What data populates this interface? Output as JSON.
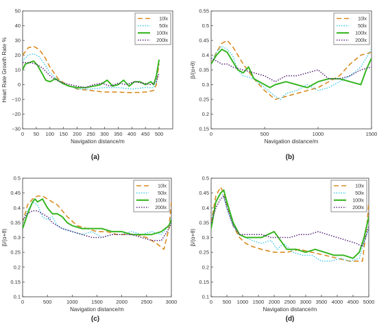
{
  "series_styles": [
    {
      "name": "10lx",
      "color": "#d98a1f",
      "dash": "7,4",
      "width": 1.6
    },
    {
      "name": "50lx",
      "color": "#39c6e8",
      "dash": "1.5,2",
      "width": 1.4
    },
    {
      "name": "100lx",
      "color": "#35b51f",
      "dash": "",
      "width": 2.0
    },
    {
      "name": "200lx",
      "color": "#5a2a7a",
      "dash": "1.5,2",
      "width": 1.6
    }
  ],
  "chart_data": [
    {
      "type": "line",
      "panel_label": "(a)",
      "xlabel": "Navigation distance/m",
      "ylabel": "Heart Rate Growth Rate %",
      "xlim": [
        0,
        550
      ],
      "ylim": [
        -30,
        50
      ],
      "xticks": [
        0,
        50,
        100,
        150,
        200,
        250,
        300,
        350,
        400,
        450,
        500
      ],
      "xticklabels": [
        "0",
        "50",
        "100",
        "150",
        "200",
        "250",
        "300",
        "350",
        "400",
        "450",
        "500"
      ],
      "yticks": [
        -30,
        -20,
        -10,
        0,
        10,
        20,
        30,
        40,
        50
      ],
      "yticklabels": [
        "−30",
        "−20",
        "−10",
        "0",
        "10",
        "20",
        "30",
        "40",
        "50"
      ],
      "legend": "top-right",
      "series": [
        {
          "name": "10lx",
          "x": [
            0,
            20,
            40,
            60,
            80,
            100,
            130,
            160,
            200,
            250,
            300,
            350,
            400,
            450,
            480,
            490,
            495,
            500
          ],
          "y": [
            20,
            25,
            26,
            24,
            19,
            12,
            4,
            0,
            -3,
            -4,
            -5,
            -5,
            -5.5,
            -5,
            -4,
            0,
            8,
            14
          ]
        },
        {
          "name": "50lx",
          "x": [
            0,
            20,
            40,
            60,
            80,
            100,
            130,
            160,
            200,
            250,
            300,
            350,
            400,
            450,
            480,
            490,
            495,
            500
          ],
          "y": [
            16,
            20,
            21,
            19,
            14,
            8,
            3,
            0,
            -3,
            -3,
            -2,
            -2,
            -3,
            -2,
            -2,
            2,
            10,
            16
          ]
        },
        {
          "name": "100lx",
          "x": [
            0,
            10,
            25,
            40,
            55,
            70,
            85,
            100,
            120,
            145,
            170,
            200,
            230,
            260,
            285,
            310,
            330,
            350,
            370,
            390,
            410,
            430,
            450,
            470,
            480,
            490,
            500
          ],
          "y": [
            10,
            14,
            15,
            16,
            13,
            8,
            3,
            2,
            4,
            1,
            -1,
            -2,
            -2,
            -1,
            0,
            3,
            -1,
            0,
            3,
            -1,
            2,
            2,
            0,
            2,
            0,
            6,
            17
          ]
        },
        {
          "name": "200lx",
          "x": [
            0,
            25,
            50,
            75,
            100,
            125,
            150,
            175,
            200,
            230,
            260,
            290,
            320,
            350,
            380,
            410,
            440,
            470,
            490,
            500
          ],
          "y": [
            15,
            15,
            14,
            11,
            6,
            3,
            1,
            0,
            -1,
            -2,
            0,
            1,
            -1,
            1,
            0,
            2,
            1,
            0,
            2,
            8
          ]
        }
      ]
    },
    {
      "type": "line",
      "panel_label": "(b)",
      "xlabel": "Navigation distance/m",
      "ylabel": "β/(α+θ)",
      "xlim": [
        0,
        1500
      ],
      "ylim": [
        0.15,
        0.55
      ],
      "xticks": [
        0,
        500,
        1000,
        1500
      ],
      "xticklabels": [
        "0",
        "500",
        "1000",
        "1500"
      ],
      "yticks": [
        0.15,
        0.2,
        0.25,
        0.3,
        0.35,
        0.4,
        0.45,
        0.5,
        0.55
      ],
      "yticklabels": [
        "0.15",
        "0.2",
        "0.25",
        "0.3",
        "0.35",
        "0.4",
        "0.45",
        "0.5",
        "0.55"
      ],
      "legend": "top-right",
      "series": [
        {
          "name": "10lx",
          "x": [
            0,
            50,
            100,
            150,
            200,
            300,
            400,
            500,
            600,
            700,
            800,
            900,
            1000,
            1100,
            1200,
            1300,
            1400,
            1500
          ],
          "y": [
            0.37,
            0.41,
            0.44,
            0.45,
            0.43,
            0.37,
            0.32,
            0.28,
            0.25,
            0.26,
            0.27,
            0.28,
            0.29,
            0.31,
            0.33,
            0.37,
            0.4,
            0.41
          ]
        },
        {
          "name": "50lx",
          "x": [
            0,
            50,
            100,
            150,
            200,
            250,
            300,
            400,
            500,
            600,
            650,
            700,
            800,
            900,
            1000,
            1100,
            1200,
            1300,
            1400,
            1500
          ],
          "y": [
            0.37,
            0.41,
            0.43,
            0.42,
            0.4,
            0.35,
            0.33,
            0.32,
            0.29,
            0.26,
            0.25,
            0.27,
            0.28,
            0.3,
            0.28,
            0.29,
            0.31,
            0.33,
            0.36,
            0.42
          ]
        },
        {
          "name": "100lx",
          "x": [
            0,
            50,
            100,
            150,
            200,
            250,
            300,
            350,
            400,
            450,
            500,
            550,
            600,
            700,
            800,
            900,
            1000,
            1100,
            1200,
            1300,
            1400,
            1450,
            1500
          ],
          "y": [
            0.37,
            0.4,
            0.42,
            0.41,
            0.38,
            0.35,
            0.34,
            0.36,
            0.32,
            0.31,
            0.3,
            0.29,
            0.3,
            0.31,
            0.3,
            0.29,
            0.31,
            0.32,
            0.32,
            0.31,
            0.3,
            0.35,
            0.39
          ]
        },
        {
          "name": "200lx",
          "x": [
            0,
            50,
            100,
            150,
            200,
            300,
            400,
            500,
            600,
            700,
            800,
            900,
            1000,
            1100,
            1200,
            1300,
            1400,
            1500
          ],
          "y": [
            0.39,
            0.38,
            0.37,
            0.37,
            0.36,
            0.35,
            0.34,
            0.33,
            0.31,
            0.33,
            0.33,
            0.34,
            0.35,
            0.32,
            0.32,
            0.33,
            0.35,
            0.36
          ]
        }
      ]
    },
    {
      "type": "line",
      "panel_label": "(c)",
      "xlabel": "Navigation distance/m",
      "ylabel": "β/(α+θ)",
      "xlim": [
        0,
        3000
      ],
      "ylim": [
        0.1,
        0.5
      ],
      "xticks": [
        0,
        500,
        1000,
        1500,
        2000,
        2500,
        3000
      ],
      "xticklabels": [
        "0",
        "500",
        "1000",
        "1500",
        "2000",
        "2500",
        "3000"
      ],
      "yticks": [
        0.1,
        0.15,
        0.2,
        0.25,
        0.3,
        0.35,
        0.4,
        0.45,
        0.5
      ],
      "yticklabels": [
        "0.1",
        "0.15",
        "0.2",
        "0.25",
        "0.3",
        "0.35",
        "0.4",
        "0.45",
        "0.5"
      ],
      "legend": "top-right",
      "series": [
        {
          "name": "10lx",
          "x": [
            0,
            100,
            200,
            300,
            400,
            500,
            700,
            900,
            1100,
            1300,
            1500,
            1700,
            1900,
            2100,
            2300,
            2500,
            2700,
            2850,
            2950,
            3000
          ],
          "y": [
            0.35,
            0.41,
            0.43,
            0.44,
            0.44,
            0.43,
            0.41,
            0.37,
            0.34,
            0.33,
            0.32,
            0.32,
            0.31,
            0.31,
            0.31,
            0.3,
            0.28,
            0.26,
            0.33,
            0.42
          ]
        },
        {
          "name": "50lx",
          "x": [
            0,
            100,
            200,
            300,
            400,
            500,
            600,
            700,
            800,
            1000,
            1200,
            1400,
            1600,
            1800,
            2000,
            2200,
            2400,
            2600,
            2800,
            2950,
            3000
          ],
          "y": [
            0.35,
            0.39,
            0.42,
            0.41,
            0.37,
            0.36,
            0.37,
            0.34,
            0.33,
            0.32,
            0.31,
            0.32,
            0.3,
            0.31,
            0.31,
            0.32,
            0.31,
            0.32,
            0.31,
            0.34,
            0.37
          ]
        },
        {
          "name": "100lx",
          "x": [
            0,
            100,
            200,
            250,
            300,
            400,
            500,
            600,
            700,
            800,
            900,
            1000,
            1200,
            1400,
            1600,
            1800,
            2000,
            2200,
            2400,
            2600,
            2800,
            2950,
            3000
          ],
          "y": [
            0.33,
            0.38,
            0.42,
            0.43,
            0.42,
            0.43,
            0.4,
            0.38,
            0.38,
            0.37,
            0.35,
            0.34,
            0.33,
            0.33,
            0.33,
            0.32,
            0.32,
            0.31,
            0.31,
            0.31,
            0.32,
            0.34,
            0.36
          ]
        },
        {
          "name": "200lx",
          "x": [
            0,
            100,
            200,
            300,
            400,
            500,
            600,
            800,
            1000,
            1200,
            1400,
            1600,
            1800,
            2000,
            2200,
            2400,
            2600,
            2800,
            2950,
            3000
          ],
          "y": [
            0.36,
            0.38,
            0.39,
            0.39,
            0.38,
            0.37,
            0.35,
            0.33,
            0.32,
            0.31,
            0.3,
            0.3,
            0.31,
            0.31,
            0.31,
            0.3,
            0.29,
            0.29,
            0.33,
            0.35
          ]
        }
      ]
    },
    {
      "type": "line",
      "panel_label": "(d)",
      "xlabel": "Navigation distance/m",
      "ylabel": "β/(α+θ)",
      "xlim": [
        0,
        5000
      ],
      "ylim": [
        0.1,
        0.5
      ],
      "xticks": [
        0,
        500,
        1000,
        1500,
        2000,
        2500,
        3000,
        3500,
        4000,
        4500,
        5000
      ],
      "xticklabels": [
        "0",
        "500",
        "1000",
        "1500",
        "2000",
        "2500",
        "3000",
        "3500",
        "4000",
        "4500",
        "5000"
      ],
      "yticks": [
        0.1,
        0.15,
        0.2,
        0.25,
        0.3,
        0.35,
        0.4,
        0.45,
        0.5
      ],
      "yticklabels": [
        "0.1",
        "0.15",
        "0.2",
        "0.25",
        "0.3",
        "0.35",
        "0.4",
        "0.45",
        "0.5"
      ],
      "legend": "top-right",
      "series": [
        {
          "name": "10lx",
          "x": [
            0,
            150,
            300,
            400,
            500,
            700,
            900,
            1100,
            1300,
            1600,
            2000,
            2400,
            2800,
            3200,
            3600,
            4000,
            4400,
            4800,
            4950,
            5000
          ],
          "y": [
            0.35,
            0.44,
            0.47,
            0.45,
            0.41,
            0.34,
            0.3,
            0.28,
            0.27,
            0.26,
            0.25,
            0.25,
            0.26,
            0.25,
            0.24,
            0.23,
            0.22,
            0.22,
            0.35,
            0.42
          ]
        },
        {
          "name": "50lx",
          "x": [
            0,
            150,
            300,
            400,
            500,
            700,
            900,
            1100,
            1300,
            1600,
            1900,
            2100,
            2300,
            2600,
            2900,
            3200,
            3500,
            3800,
            4100,
            4400,
            4700,
            4900,
            5000
          ],
          "y": [
            0.35,
            0.42,
            0.45,
            0.44,
            0.4,
            0.34,
            0.31,
            0.3,
            0.29,
            0.28,
            0.29,
            0.26,
            0.28,
            0.25,
            0.24,
            0.24,
            0.22,
            0.22,
            0.23,
            0.22,
            0.23,
            0.3,
            0.33
          ]
        },
        {
          "name": "100lx",
          "x": [
            0,
            150,
            300,
            400,
            500,
            700,
            900,
            1100,
            1300,
            1600,
            1800,
            2000,
            2200,
            2400,
            2700,
            3000,
            3300,
            3600,
            3900,
            4200,
            4500,
            4700,
            4850,
            5000
          ],
          "y": [
            0.33,
            0.42,
            0.45,
            0.46,
            0.42,
            0.35,
            0.31,
            0.3,
            0.3,
            0.3,
            0.31,
            0.32,
            0.29,
            0.26,
            0.26,
            0.25,
            0.26,
            0.25,
            0.24,
            0.24,
            0.23,
            0.25,
            0.3,
            0.37
          ]
        },
        {
          "name": "200lx",
          "x": [
            0,
            150,
            300,
            400,
            500,
            700,
            900,
            1100,
            1300,
            1600,
            1900,
            2200,
            2500,
            2800,
            3100,
            3400,
            3700,
            4000,
            4300,
            4600,
            4800,
            4900,
            5000
          ],
          "y": [
            0.35,
            0.4,
            0.43,
            0.44,
            0.4,
            0.34,
            0.31,
            0.31,
            0.31,
            0.31,
            0.3,
            0.3,
            0.3,
            0.31,
            0.31,
            0.32,
            0.31,
            0.3,
            0.29,
            0.28,
            0.27,
            0.3,
            0.34
          ]
        }
      ]
    }
  ]
}
